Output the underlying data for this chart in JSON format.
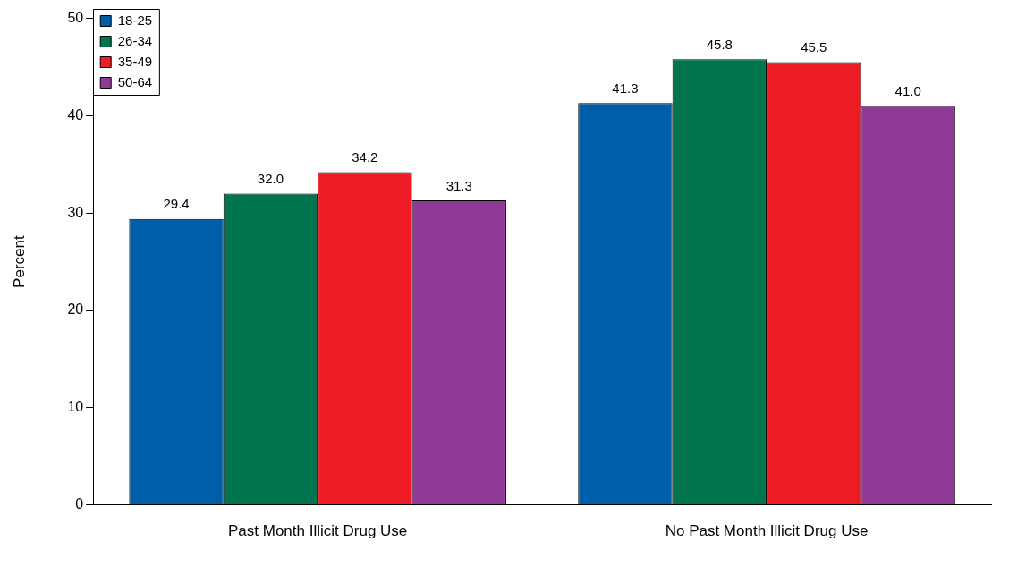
{
  "chart_data": {
    "type": "bar",
    "ylabel": "Percent",
    "categories": [
      "Past Month Illicit Drug Use",
      "No Past Month Illicit Drug Use"
    ],
    "series": [
      {
        "name": "18-25",
        "color": "#005ea8",
        "values": [
          29.4,
          41.3
        ],
        "value_labels": [
          "29.4",
          "41.3"
        ]
      },
      {
        "name": "26-34",
        "color": "#00754f",
        "values": [
          32,
          45.8
        ],
        "value_labels": [
          "32.0",
          "45.8"
        ]
      },
      {
        "name": "35-49",
        "color": "#ed1c24",
        "values": [
          34.2,
          45.5
        ],
        "value_labels": [
          "34.2",
          "45.5"
        ]
      },
      {
        "name": "50-64",
        "color": "#8e3a96",
        "values": [
          31.3,
          41
        ],
        "value_labels": [
          "31.3",
          "41.0"
        ]
      }
    ],
    "ylim": [
      0,
      50
    ],
    "yticks": [
      0,
      10,
      20,
      30,
      40,
      50
    ],
    "grid": false,
    "legend": "top left"
  }
}
